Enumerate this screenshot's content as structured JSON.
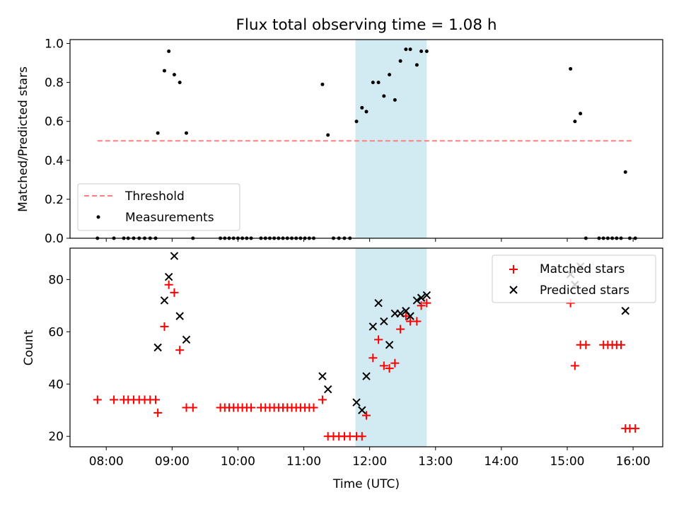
{
  "chart_data": {
    "title": "Flux total observing time = 1.08 h",
    "xlabel": "Time (UTC)",
    "x_ticks": [
      "08:00",
      "09:00",
      "10:00",
      "11:00",
      "12:00",
      "13:00",
      "14:00",
      "15:00",
      "16:00"
    ],
    "x_range": [
      "07:27",
      "16:27"
    ],
    "highlight_span": [
      "11:47",
      "12:52"
    ],
    "highlight_color": "#add8e6",
    "panels": [
      {
        "type": "scatter",
        "ylabel": "Matched/Predicted stars",
        "ylim": [
          0,
          1.02
        ],
        "y_ticks": [
          "0.0",
          "0.2",
          "0.4",
          "0.6",
          "0.8",
          "1.0"
        ],
        "legend_position": "lower-left",
        "threshold": {
          "name": "Threshold",
          "y": 0.5,
          "x": [
            "07:52",
            "16:00"
          ],
          "color": "#ff7f7f"
        },
        "series": [
          {
            "name": "Measurements",
            "color": "#000000",
            "points": [
              [
                "07:52",
                0.0
              ],
              [
                "08:07",
                0.0
              ],
              [
                "08:16",
                0.0
              ],
              [
                "08:20",
                0.0
              ],
              [
                "08:25",
                0.0
              ],
              [
                "08:30",
                0.0
              ],
              [
                "08:35",
                0.0
              ],
              [
                "08:40",
                0.0
              ],
              [
                "08:45",
                0.0
              ],
              [
                "08:47",
                0.54
              ],
              [
                "08:53",
                0.86
              ],
              [
                "08:57",
                0.96
              ],
              [
                "09:02",
                0.84
              ],
              [
                "09:07",
                0.8
              ],
              [
                "09:13",
                0.54
              ],
              [
                "09:19",
                0.0
              ],
              [
                "09:44",
                0.0
              ],
              [
                "09:48",
                0.0
              ],
              [
                "09:52",
                0.0
              ],
              [
                "09:56",
                0.0
              ],
              [
                "10:00",
                0.0
              ],
              [
                "10:04",
                0.0
              ],
              [
                "10:08",
                0.0
              ],
              [
                "10:12",
                0.0
              ],
              [
                "10:21",
                0.0
              ],
              [
                "10:25",
                0.0
              ],
              [
                "10:29",
                0.0
              ],
              [
                "10:33",
                0.0
              ],
              [
                "10:37",
                0.0
              ],
              [
                "10:41",
                0.0
              ],
              [
                "10:45",
                0.0
              ],
              [
                "10:49",
                0.0
              ],
              [
                "10:53",
                0.0
              ],
              [
                "10:57",
                0.0
              ],
              [
                "11:01",
                0.0
              ],
              [
                "11:05",
                0.0
              ],
              [
                "11:09",
                0.0
              ],
              [
                "11:17",
                0.79
              ],
              [
                "11:22",
                0.53
              ],
              [
                "11:27",
                0.0
              ],
              [
                "11:32",
                0.0
              ],
              [
                "11:37",
                0.0
              ],
              [
                "11:42",
                0.0
              ],
              [
                "11:48",
                0.6
              ],
              [
                "11:53",
                0.67
              ],
              [
                "11:57",
                0.65
              ],
              [
                "12:03",
                0.8
              ],
              [
                "12:08",
                0.8
              ],
              [
                "12:13",
                0.73
              ],
              [
                "12:18",
                0.84
              ],
              [
                "12:23",
                0.71
              ],
              [
                "12:28",
                0.91
              ],
              [
                "12:33",
                0.97
              ],
              [
                "12:37",
                0.97
              ],
              [
                "12:43",
                0.89
              ],
              [
                "12:47",
                0.96
              ],
              [
                "12:52",
                0.96
              ],
              [
                "15:03",
                0.87
              ],
              [
                "15:07",
                0.6
              ],
              [
                "15:12",
                0.64
              ],
              [
                "15:17",
                0.0
              ],
              [
                "15:29",
                0.0
              ],
              [
                "15:33",
                0.0
              ],
              [
                "15:37",
                0.0
              ],
              [
                "15:41",
                0.0
              ],
              [
                "15:45",
                0.0
              ],
              [
                "15:49",
                0.0
              ],
              [
                "15:53",
                0.34
              ],
              [
                "15:57",
                0.0
              ],
              [
                "16:02",
                0.0
              ]
            ]
          }
        ]
      },
      {
        "type": "scatter",
        "ylabel": "Count",
        "ylim": [
          16,
          92
        ],
        "y_ticks": [
          "20",
          "40",
          "60",
          "80"
        ],
        "legend_position": "upper-right",
        "series": [
          {
            "name": "Matched stars",
            "marker": "+",
            "color": "#ff0000",
            "points": [
              [
                "07:52",
                34
              ],
              [
                "08:07",
                34
              ],
              [
                "08:16",
                34
              ],
              [
                "08:20",
                34
              ],
              [
                "08:25",
                34
              ],
              [
                "08:30",
                34
              ],
              [
                "08:35",
                34
              ],
              [
                "08:40",
                34
              ],
              [
                "08:45",
                34
              ],
              [
                "08:47",
                29
              ],
              [
                "08:53",
                62
              ],
              [
                "08:57",
                78
              ],
              [
                "09:02",
                75
              ],
              [
                "09:07",
                53
              ],
              [
                "09:13",
                31
              ],
              [
                "09:19",
                31
              ],
              [
                "09:44",
                31
              ],
              [
                "09:48",
                31
              ],
              [
                "09:52",
                31
              ],
              [
                "09:56",
                31
              ],
              [
                "10:00",
                31
              ],
              [
                "10:04",
                31
              ],
              [
                "10:08",
                31
              ],
              [
                "10:12",
                31
              ],
              [
                "10:21",
                31
              ],
              [
                "10:25",
                31
              ],
              [
                "10:29",
                31
              ],
              [
                "10:33",
                31
              ],
              [
                "10:37",
                31
              ],
              [
                "10:41",
                31
              ],
              [
                "10:45",
                31
              ],
              [
                "10:49",
                31
              ],
              [
                "10:53",
                31
              ],
              [
                "10:57",
                31
              ],
              [
                "11:01",
                31
              ],
              [
                "11:05",
                31
              ],
              [
                "11:09",
                31
              ],
              [
                "11:17",
                34
              ],
              [
                "11:22",
                20
              ],
              [
                "11:27",
                20
              ],
              [
                "11:32",
                20
              ],
              [
                "11:37",
                20
              ],
              [
                "11:42",
                20
              ],
              [
                "11:48",
                20
              ],
              [
                "11:53",
                20
              ],
              [
                "11:57",
                28
              ],
              [
                "12:03",
                50
              ],
              [
                "12:08",
                57
              ],
              [
                "12:13",
                47
              ],
              [
                "12:18",
                46
              ],
              [
                "12:23",
                48
              ],
              [
                "12:28",
                61
              ],
              [
                "12:33",
                66
              ],
              [
                "12:37",
                64
              ],
              [
                "12:43",
                64
              ],
              [
                "12:47",
                70
              ],
              [
                "12:52",
                71
              ],
              [
                "15:03",
                71
              ],
              [
                "15:07",
                47
              ],
              [
                "15:12",
                55
              ],
              [
                "15:17",
                55
              ],
              [
                "15:33",
                55
              ],
              [
                "15:37",
                55
              ],
              [
                "15:41",
                55
              ],
              [
                "15:45",
                55
              ],
              [
                "15:49",
                55
              ],
              [
                "15:53",
                23
              ],
              [
                "15:57",
                23
              ],
              [
                "16:02",
                23
              ]
            ]
          },
          {
            "name": "Predicted stars",
            "marker": "x",
            "color": "#000000",
            "points": [
              [
                "08:47",
                54
              ],
              [
                "08:53",
                72
              ],
              [
                "08:57",
                81
              ],
              [
                "09:02",
                89
              ],
              [
                "09:07",
                66
              ],
              [
                "09:13",
                57
              ],
              [
                "11:17",
                43
              ],
              [
                "11:22",
                38
              ],
              [
                "11:48",
                33
              ],
              [
                "11:53",
                30
              ],
              [
                "11:57",
                43
              ],
              [
                "12:03",
                62
              ],
              [
                "12:08",
                71
              ],
              [
                "12:13",
                64
              ],
              [
                "12:18",
                55
              ],
              [
                "12:23",
                67
              ],
              [
                "12:28",
                67
              ],
              [
                "12:33",
                68
              ],
              [
                "12:37",
                66
              ],
              [
                "12:43",
                72
              ],
              [
                "12:47",
                73
              ],
              [
                "12:52",
                74
              ],
              [
                "15:03",
                82
              ],
              [
                "15:07",
                78
              ],
              [
                "15:12",
                85
              ],
              [
                "15:53",
                68
              ]
            ]
          }
        ]
      }
    ]
  }
}
